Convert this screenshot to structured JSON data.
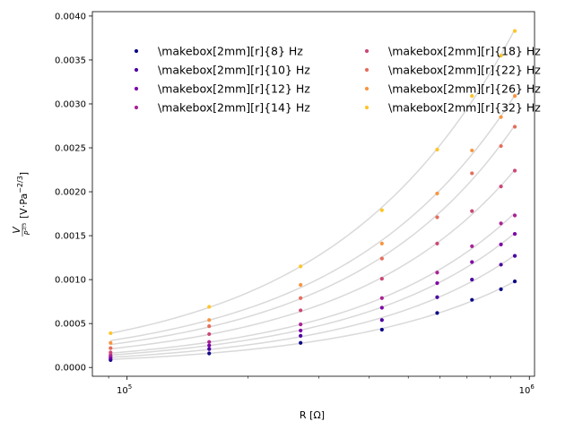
{
  "chart_data": {
    "type": "scatter",
    "xscale": "log",
    "xlim": [
      82000,
      1030000
    ],
    "ylim": [
      -0.0001,
      0.00405
    ],
    "xlabel": "R [Ω]",
    "ylabel_main": "[V·Pa",
    "ylabel_exp": "−2/3",
    "ylabel_close": "]",
    "ylabel_num": "V",
    "ylabel_den": "P",
    "ylabel_den_exp": "2/3",
    "x_ticks": [
      {
        "value": 100000,
        "base": "10",
        "exp": "5"
      },
      {
        "value": 1000000,
        "base": "10",
        "exp": "6"
      }
    ],
    "y_ticks": [
      "0.0000",
      "0.0005",
      "0.0010",
      "0.0015",
      "0.0020",
      "0.0025",
      "0.0030",
      "0.0035",
      "0.0040"
    ],
    "x": [
      91000,
      160000,
      270000,
      430000,
      590000,
      720000,
      850000,
      920000
    ],
    "legend": {
      "location": "upper-left",
      "columns": 2
    },
    "fit_line_color": "#d9d9d9",
    "series": [
      {
        "name": "\\makebox[2mm][r]{8} Hz",
        "color": "#0d0887",
        "values": [
          8.5e-05,
          0.00016,
          0.00028,
          0.00043,
          0.00062,
          0.00077,
          0.00089,
          0.00098
        ]
      },
      {
        "name": "\\makebox[2mm][r]{10} Hz",
        "color": "#4c02a1",
        "values": [
          0.0001,
          0.00021,
          0.00036,
          0.00054,
          0.0008,
          0.001,
          0.00117,
          0.00127
        ]
      },
      {
        "name": "\\makebox[2mm][r]{12} Hz",
        "color": "#7e03a8",
        "values": [
          0.00012,
          0.00025,
          0.00042,
          0.00068,
          0.00096,
          0.0012,
          0.0014,
          0.00152
        ]
      },
      {
        "name": "\\makebox[2mm][r]{14} Hz",
        "color": "#a92395",
        "values": [
          0.00014,
          0.00029,
          0.00049,
          0.00079,
          0.00108,
          0.00138,
          0.00164,
          0.00173
        ]
      },
      {
        "name": "\\makebox[2mm][r]{18} Hz",
        "color": "#cc4778",
        "values": [
          0.00017,
          0.00038,
          0.00065,
          0.00101,
          0.00141,
          0.00178,
          0.00206,
          0.00224
        ]
      },
      {
        "name": "\\makebox[2mm][r]{22} Hz",
        "color": "#e66c5c",
        "values": [
          0.00022,
          0.00047,
          0.00079,
          0.00124,
          0.00171,
          0.00221,
          0.00252,
          0.00274
        ]
      },
      {
        "name": "\\makebox[2mm][r]{26} Hz",
        "color": "#f89540",
        "values": [
          0.00028,
          0.00054,
          0.00094,
          0.00141,
          0.00198,
          0.00247,
          0.00285,
          0.00309
        ]
      },
      {
        "name": "\\makebox[2mm][r]{32} Hz",
        "color": "#fdc527",
        "values": [
          0.00039,
          0.00069,
          0.00115,
          0.00179,
          0.00248,
          0.00309,
          0.00355,
          0.00383
        ]
      }
    ]
  }
}
